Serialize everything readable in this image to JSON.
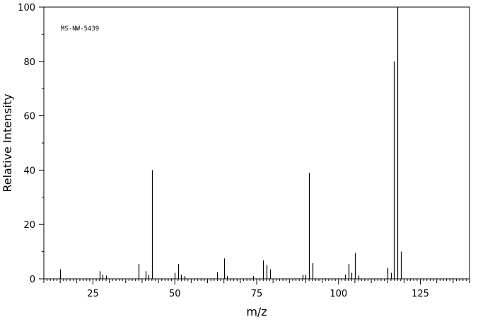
{
  "chart_data": {
    "type": "bar",
    "title": "",
    "annotation": "MS-NW-5439",
    "xlabel": "m/z",
    "ylabel": "Relative Intensity",
    "xlim": [
      10,
      140
    ],
    "ylim": [
      0,
      100
    ],
    "xticks": [
      25,
      50,
      75,
      100,
      125
    ],
    "yticks": [
      0,
      20,
      40,
      60,
      80,
      100
    ],
    "grid": false,
    "x": [
      15,
      27,
      28,
      29,
      39,
      41,
      42,
      43,
      50,
      51,
      52,
      53,
      63,
      65,
      66,
      74,
      77,
      78,
      79,
      89,
      90,
      91,
      92,
      102,
      103,
      104,
      105,
      106,
      115,
      116,
      117,
      118,
      119
    ],
    "values": [
      3.5,
      2.8,
      1.5,
      1.2,
      5.5,
      2.8,
      1.5,
      40,
      2.2,
      5.5,
      1.5,
      1.0,
      2.5,
      7.5,
      1.0,
      1.0,
      6.8,
      5.0,
      3.5,
      1.5,
      1.5,
      39,
      5.8,
      1.5,
      5.5,
      2.2,
      9.5,
      1.2,
      4.0,
      2.2,
      80,
      100,
      10
    ]
  }
}
